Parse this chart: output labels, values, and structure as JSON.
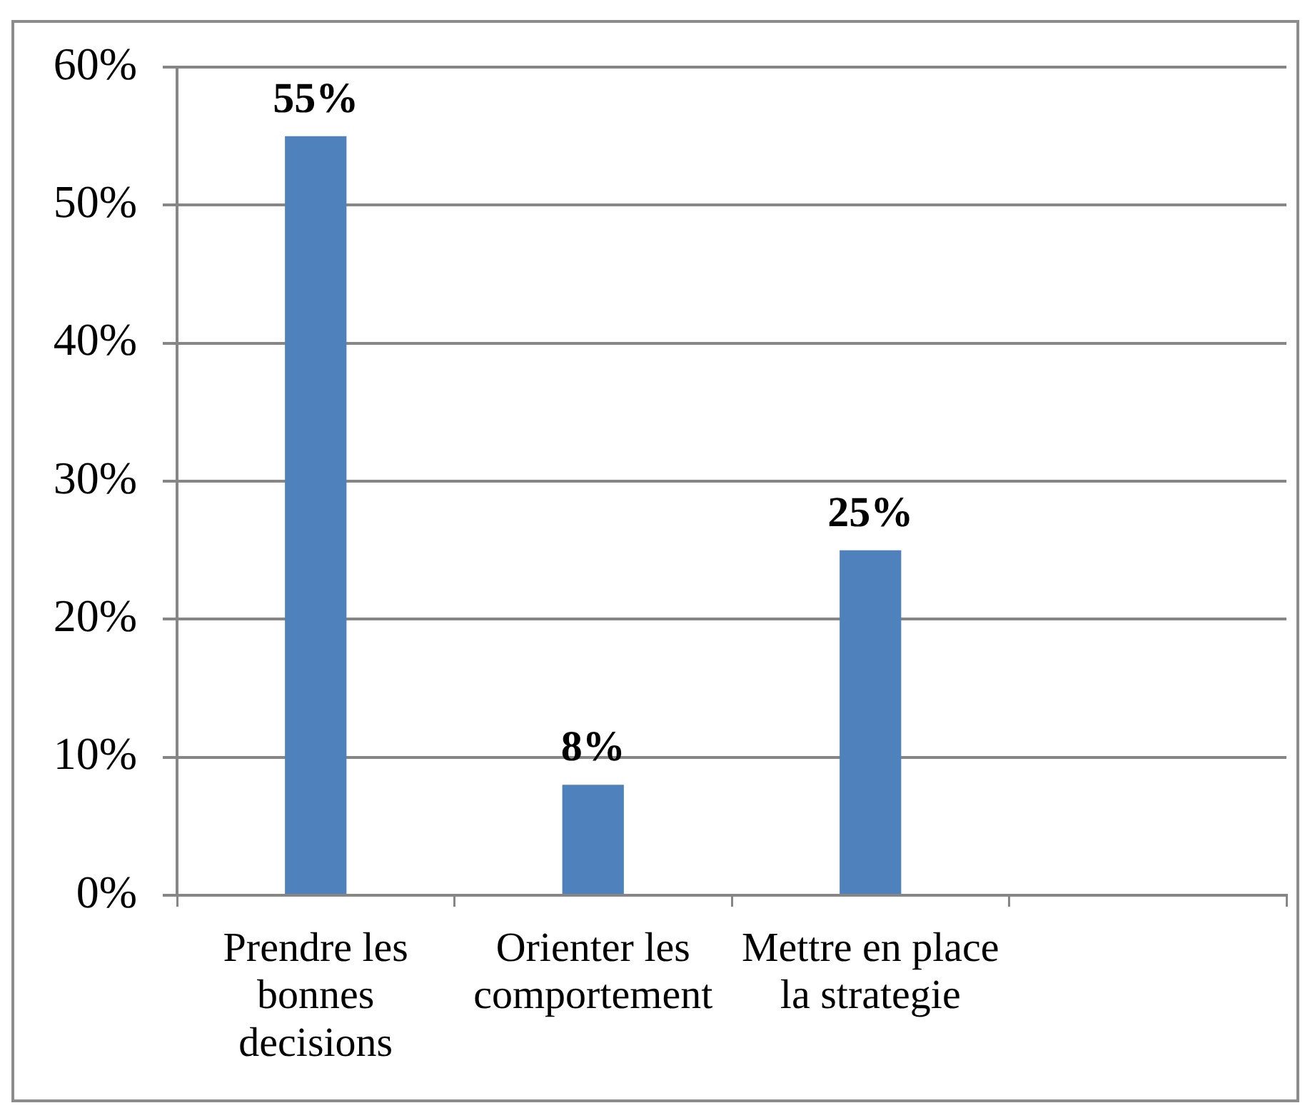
{
  "chart_data": {
    "type": "bar",
    "categories": [
      "Prendre les bonnes decisions",
      "Orienter les comportement",
      "Mettre en place la strategie",
      null
    ],
    "values": [
      55,
      8,
      25,
      null
    ],
    "color": "#4f81bd",
    "value_labels": [
      "55%",
      "8%",
      "25%",
      null
    ],
    "ylim": [
      0,
      60
    ],
    "yticks": [
      {
        "value": 0,
        "label": "0%"
      },
      {
        "value": 10,
        "label": "10%"
      },
      {
        "value": 20,
        "label": "20%"
      },
      {
        "value": 30,
        "label": "30%"
      },
      {
        "value": 40,
        "label": "40%"
      },
      {
        "value": 50,
        "label": "50%"
      },
      {
        "value": 60,
        "label": "60%"
      }
    ],
    "grid": "y"
  }
}
